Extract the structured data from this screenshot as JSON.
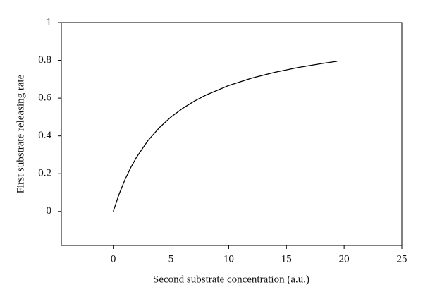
{
  "chart_data": {
    "type": "line",
    "xlabel": "Second substrate concentration (a.u.)",
    "ylabel": "First substrate releasing rate",
    "x": [
      0,
      0.5,
      1,
      1.5,
      2,
      3,
      4,
      5,
      6,
      7,
      8,
      10,
      12,
      14,
      16,
      18,
      19.4
    ],
    "series": [
      {
        "color": "#000000",
        "values": [
          0,
          0.0909,
          0.1667,
          0.2308,
          0.2857,
          0.375,
          0.4444,
          0.5,
          0.5455,
          0.5833,
          0.6154,
          0.6667,
          0.7059,
          0.7368,
          0.7619,
          0.7826,
          0.7951
        ]
      }
    ],
    "xlim": [
      -4.5,
      25
    ],
    "xticks": [
      0,
      5,
      10,
      15,
      20,
      25
    ],
    "ylim": [
      -0.18,
      1
    ],
    "yticks": [
      0,
      0.2,
      0.4,
      0.6,
      0.8,
      1
    ],
    "grid": false
  }
}
